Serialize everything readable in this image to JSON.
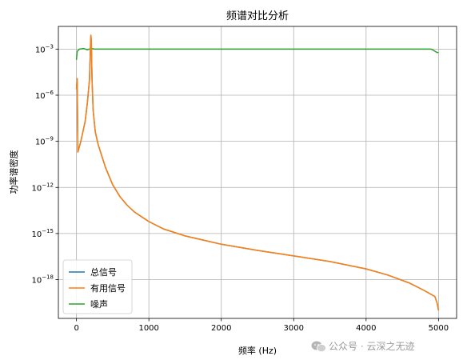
{
  "chart_data": {
    "type": "line",
    "title": "频谱对比分析",
    "xlabel": "频率 (Hz)",
    "ylabel": "功率谱密度",
    "y_scale": "log",
    "xlim": [
      -250,
      5250
    ],
    "ylim": [
      3e-21,
      0.03
    ],
    "x_ticks": [
      0,
      1000,
      2000,
      3000,
      4000,
      5000
    ],
    "x_tick_labels": [
      "0",
      "1000",
      "2000",
      "3000",
      "4000",
      "5000"
    ],
    "y_ticks": [
      1e-18,
      1e-15,
      1e-12,
      1e-09,
      1e-06,
      0.001
    ],
    "y_tick_labels": [
      {
        "base": "10",
        "exp": "−18"
      },
      {
        "base": "10",
        "exp": "−15"
      },
      {
        "base": "10",
        "exp": "−12"
      },
      {
        "base": "10",
        "exp": "−9"
      },
      {
        "base": "10",
        "exp": "−6"
      },
      {
        "base": "10",
        "exp": "−3"
      }
    ],
    "grid": true,
    "legend_position": "lower-left",
    "series": [
      {
        "name": "总信号",
        "color": "#1f77b4",
        "x": [
          0,
          10,
          20,
          60,
          120,
          150,
          180,
          195,
          200,
          205,
          215,
          230,
          260,
          300,
          400,
          500,
          600,
          700,
          800,
          1000,
          1200,
          1500,
          2000,
          2500,
          3000,
          3500,
          4000,
          4300,
          4600,
          4800,
          4950,
          4980,
          5000
        ],
        "y": [
          2.5e-06,
          1.2e-05,
          2e-10,
          1e-09,
          2e-08,
          3e-07,
          1e-05,
          0.003,
          0.008,
          0.003,
          1e-05,
          1e-07,
          4e-09,
          6e-10,
          2e-11,
          1.5e-12,
          2.5e-13,
          7e-14,
          2.5e-14,
          6e-15,
          2e-15,
          7e-16,
          2e-16,
          8e-17,
          3.5e-17,
          1.5e-17,
          5e-18,
          2e-18,
          6e-19,
          2e-19,
          8e-20,
          3e-20,
          1e-20
        ]
      },
      {
        "name": "有用信号",
        "color": "#ff7f0e",
        "x": [
          0,
          10,
          20,
          60,
          120,
          150,
          180,
          195,
          200,
          205,
          215,
          230,
          260,
          300,
          400,
          500,
          600,
          700,
          800,
          1000,
          1200,
          1500,
          2000,
          2500,
          3000,
          3500,
          4000,
          4300,
          4600,
          4800,
          4950,
          4980,
          5000
        ],
        "y": [
          2.5e-06,
          1.2e-05,
          2e-10,
          1e-09,
          2e-08,
          3e-07,
          1e-05,
          0.003,
          0.008,
          0.003,
          1e-05,
          1e-07,
          4e-09,
          6e-10,
          2e-11,
          1.5e-12,
          2.5e-13,
          7e-14,
          2.5e-14,
          6e-15,
          2e-15,
          7e-16,
          2e-16,
          8e-17,
          3.5e-17,
          1.5e-17,
          5e-18,
          2e-18,
          6e-19,
          2e-19,
          8e-20,
          3e-20,
          1e-20
        ]
      },
      {
        "name": "噪声",
        "color": "#2ca02c",
        "x": [
          0,
          10,
          40,
          100,
          150,
          200,
          250,
          400,
          600,
          800,
          1000,
          1200,
          1500,
          2000,
          2500,
          3000,
          3500,
          4000,
          4500,
          4900,
          4980,
          5000
        ],
        "y": [
          0.0002,
          0.0007,
          0.001,
          0.0011,
          0.0009,
          0.0011,
          0.001,
          0.001,
          0.001,
          0.001,
          0.001,
          0.001,
          0.001,
          0.001,
          0.001,
          0.001,
          0.001,
          0.001,
          0.001,
          0.001,
          0.0006,
          0.0006
        ]
      }
    ]
  },
  "watermark": {
    "icon": "wechat-icon",
    "text": "公众号 · 云深之无迹"
  }
}
